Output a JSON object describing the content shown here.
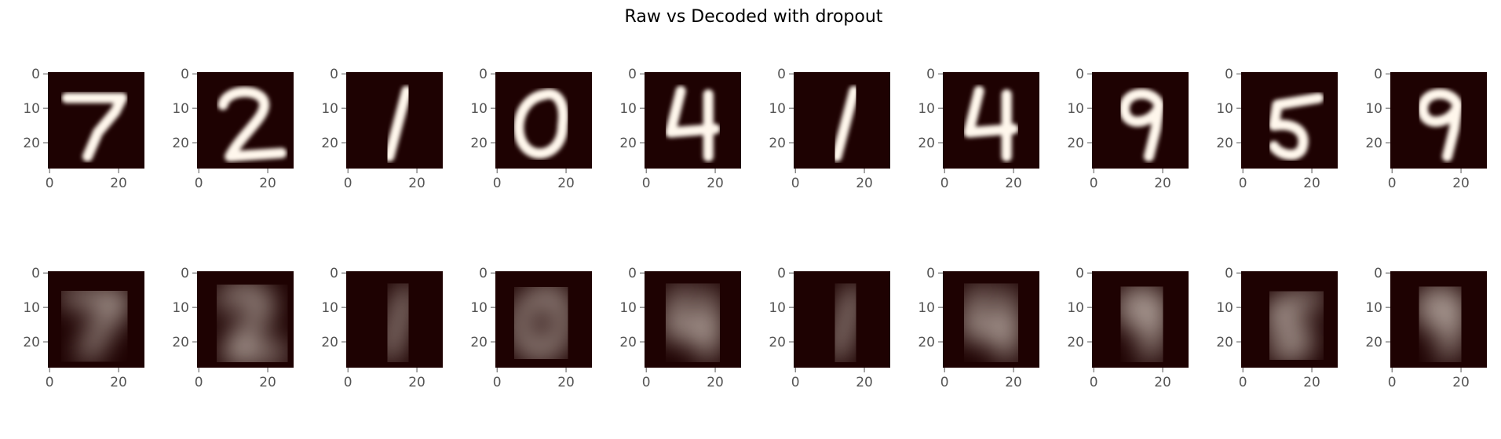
{
  "title": "Raw vs Decoded with dropout",
  "colors": {
    "background_dark": "#1e0202",
    "digit_bright": "#fff7ec",
    "tick_color": "#555555"
  },
  "chart_data": {
    "type": "heatmap",
    "title": "Raw vs Decoded with dropout",
    "rows": [
      {
        "name": "raw",
        "images": [
          {
            "digit": "7"
          },
          {
            "digit": "2"
          },
          {
            "digit": "1"
          },
          {
            "digit": "0"
          },
          {
            "digit": "4"
          },
          {
            "digit": "1"
          },
          {
            "digit": "4"
          },
          {
            "digit": "9"
          },
          {
            "digit": "5"
          },
          {
            "digit": "9"
          }
        ]
      },
      {
        "name": "decoded",
        "images": [
          {
            "digit": "7"
          },
          {
            "digit": "2"
          },
          {
            "digit": "1"
          },
          {
            "digit": "0"
          },
          {
            "digit": "4"
          },
          {
            "digit": "1"
          },
          {
            "digit": "4"
          },
          {
            "digit": "9"
          },
          {
            "digit": "5"
          },
          {
            "digit": "9"
          }
        ]
      }
    ],
    "image_size": [
      28,
      28
    ],
    "xlim": [
      -0.5,
      27.5
    ],
    "ylim": [
      27.5,
      -0.5
    ],
    "x_ticks": [
      0,
      20
    ],
    "y_ticks": [
      0,
      10,
      20
    ],
    "x_tick_labels": [
      "0",
      "20"
    ],
    "y_tick_labels": [
      "0",
      "10",
      "20"
    ],
    "grid": false,
    "colormap": "pink-dark"
  }
}
